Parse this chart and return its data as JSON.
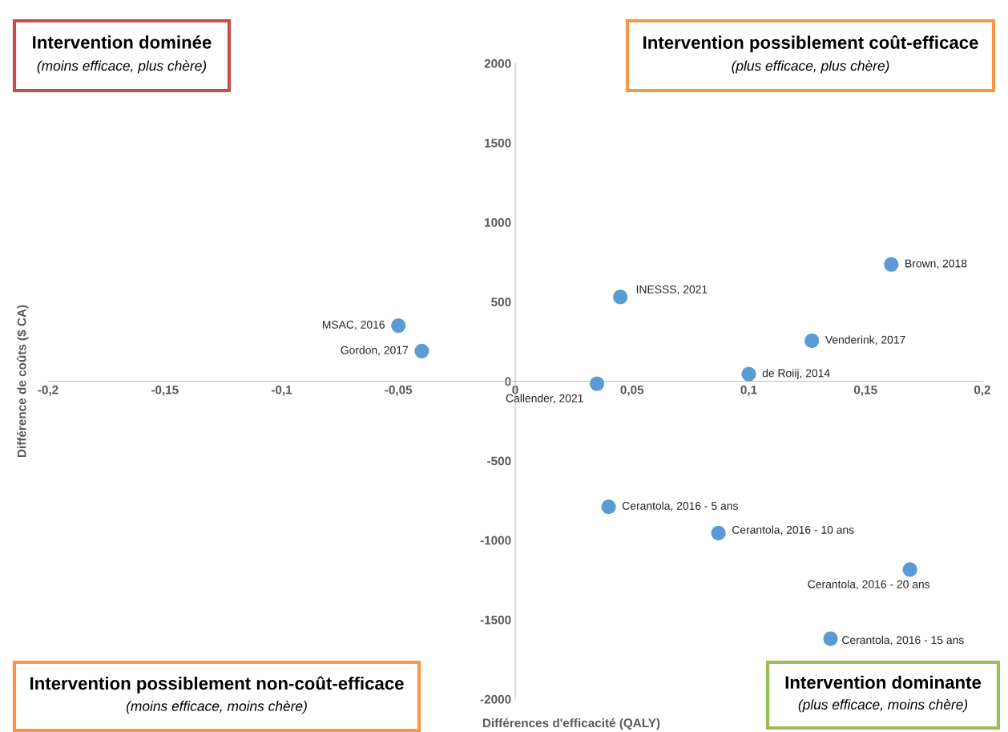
{
  "chart_data": {
    "type": "scatter",
    "xlabel": "Différences d'efficacité (QALY)",
    "ylabel": "Différence de coûts ($ CA)",
    "x": [
      -0.05,
      -0.04,
      0.035,
      0.045,
      0.161,
      0.127,
      0.1,
      0.04,
      0.087,
      0.169,
      0.135
    ],
    "series": [
      {
        "color": "#5b9bd5",
        "values": [
          350,
          190,
          -15,
          530,
          735,
          255,
          45,
          -790,
          -955,
          -1185,
          -1620
        ]
      }
    ],
    "marker": "circle",
    "grid": false,
    "xlim": [
      -0.2,
      0.2
    ],
    "ylim": [
      -2000,
      2000
    ],
    "xticks": [
      {
        "value": -0.2,
        "label": "-0,2"
      },
      {
        "value": -0.15,
        "label": "-0,15"
      },
      {
        "value": -0.1,
        "label": "-0,1"
      },
      {
        "value": -0.05,
        "label": "-0,05"
      },
      0,
      {
        "value": 0.05,
        "label": "0,05"
      },
      {
        "value": 0.1,
        "label": "0,1"
      },
      {
        "value": 0.15,
        "label": "0,15"
      },
      {
        "value": 0.2,
        "label": "0,2"
      }
    ],
    "yticks": [
      -2000,
      -1500,
      -1000,
      -500,
      0,
      500,
      1000,
      1500,
      2000
    ],
    "annotations": [
      {
        "text": "MSAC, 2016",
        "x": -0.05,
        "y": 350
      },
      {
        "text": "Gordon, 2017",
        "x": -0.04,
        "y": 190
      },
      {
        "text": "Callender, 2021",
        "x": 0.035,
        "y": -15
      },
      {
        "text": "INESSS, 2021",
        "x": 0.045,
        "y": 530
      },
      {
        "text": "Brown, 2018",
        "x": 0.161,
        "y": 735
      },
      {
        "text": "Venderink, 2017",
        "x": 0.127,
        "y": 255
      },
      {
        "text": "de Roiij, 2014",
        "x": 0.1,
        "y": 45
      },
      {
        "text": "Cerantola, 2016 - 5 ans",
        "x": 0.04,
        "y": -790
      },
      {
        "text": "Cerantola, 2016 - 10 ans",
        "x": 0.087,
        "y": -955
      },
      {
        "text": "Cerantola, 2016 - 20 ans",
        "x": 0.169,
        "y": -1185
      },
      {
        "text": "Cerantola, 2016 - 15 ans",
        "x": 0.135,
        "y": -1620
      },
      "Intervention dominée",
      "(moins efficace, plus chère)",
      "Intervention possiblement coût-efficace",
      "(plus efficace, plus chère)",
      "Intervention possiblement non-coût-efficace",
      "(moins efficace, moins chère)",
      "Intervention dominante",
      "(plus efficace, moins chère)"
    ]
  }
}
